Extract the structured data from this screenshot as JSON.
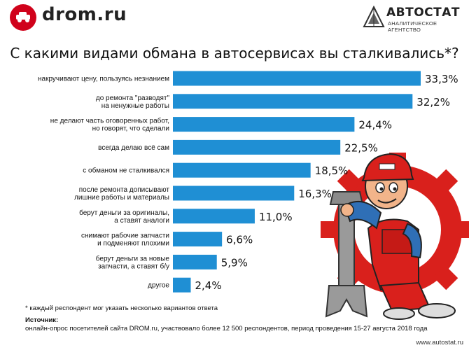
{
  "header": {
    "brand_left": "drom.ru",
    "brand_right": "АВТОСТАТ",
    "brand_right_sub": "АНАЛИТИЧЕСКОЕ АГЕНТСТВО"
  },
  "colors": {
    "bar": "#1f8fd4",
    "brand_red": "#d0021b",
    "gear": "#d9201c"
  },
  "chart_data": {
    "type": "bar",
    "orientation": "horizontal",
    "title": "С какими видами обмана в автосервисах вы сталкивались*?",
    "categories": [
      [
        "накручивают цену, пользуясь незнанием"
      ],
      [
        "до ремонта \"разводят\"",
        "на ненужные работы"
      ],
      [
        "не делают часть оговоренных работ,",
        "но говорят, что сделали"
      ],
      [
        "всегда делаю всё сам"
      ],
      [
        "с обманом не сталкивался"
      ],
      [
        "после ремонта дописывают",
        "лишние работы и материалы"
      ],
      [
        "берут деньги за оригиналы,",
        "а ставят аналоги"
      ],
      [
        "снимают рабочие запчасти",
        "и подменяют плохими"
      ],
      [
        "берут деньги за новые",
        "запчасти, а ставят б/у"
      ],
      [
        "другое"
      ]
    ],
    "values": [
      33.3,
      32.2,
      24.4,
      22.5,
      18.5,
      16.3,
      11.0,
      6.6,
      5.9,
      2.4
    ],
    "value_labels": [
      "33,3%",
      "32,2%",
      "24,4%",
      "22,5%",
      "18,5%",
      "16,3%",
      "11,0%",
      "6,6%",
      "5,9%",
      "2,4%"
    ]
  },
  "footnote": "* каждый респондент мог указать несколько вариантов ответа",
  "source_label": "Источник:",
  "source_text": "онлайн-опрос посетителей сайта DROM.ru, участвовало более 12 500 респондентов, период проведения 15-27 августа 2018 года",
  "site": "www.autostat.ru"
}
